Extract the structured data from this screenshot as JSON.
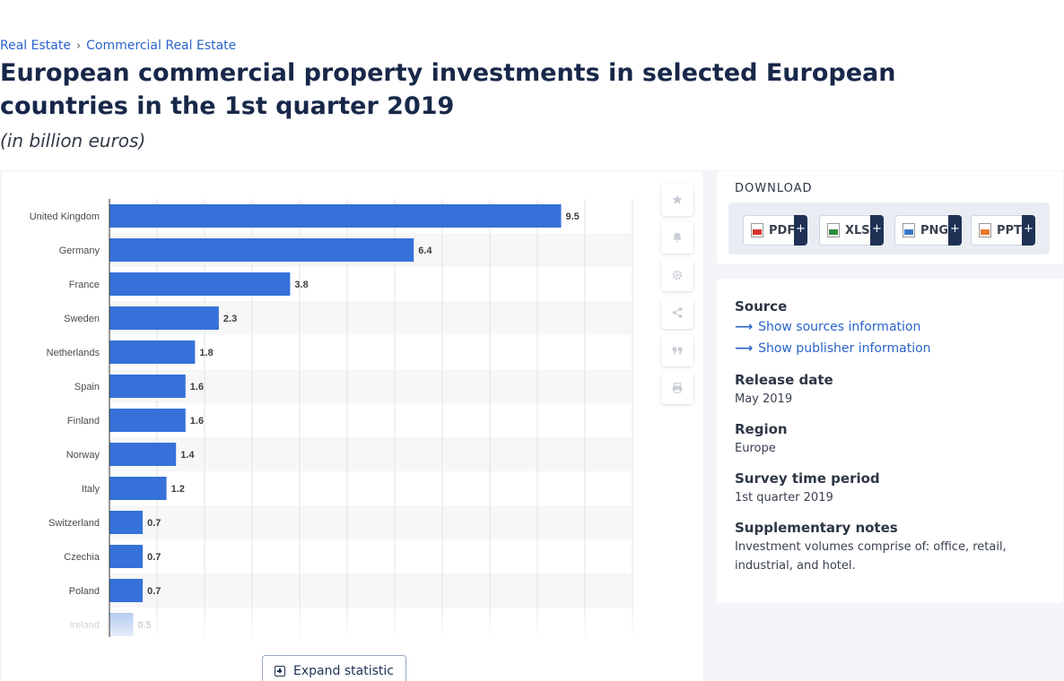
{
  "breadcrumb": {
    "items": [
      "Real Estate",
      "Commercial Real Estate"
    ],
    "separator": "›"
  },
  "title": "European commercial property investments in selected European countries in the 1st quarter 2019",
  "subtitle": "(in billion euros)",
  "chart_data": {
    "type": "bar",
    "orientation": "horizontal",
    "categories": [
      "United Kingdom",
      "Germany",
      "France",
      "Sweden",
      "Netherlands",
      "Spain",
      "Finland",
      "Norway",
      "Italy",
      "Switzerland",
      "Czechia",
      "Poland",
      "Ireland"
    ],
    "values": [
      9.5,
      6.4,
      3.8,
      2.3,
      1.8,
      1.6,
      1.6,
      1.4,
      1.2,
      0.7,
      0.7,
      0.7,
      0.5
    ],
    "value_labels": [
      "9.5",
      "6.4",
      "3.8",
      "2.3",
      "1.8",
      "1.6",
      "1.6",
      "1.4",
      "1.2",
      "0.7",
      "0.7",
      "0.7",
      "0.5"
    ],
    "xlim": [
      0,
      11
    ],
    "grid": true,
    "bar_color": "#3571d8"
  },
  "toolbar": {
    "icons": [
      "star-icon",
      "bell-icon",
      "gear-icon",
      "share-icon",
      "quote-icon",
      "print-icon"
    ]
  },
  "expand_label": "Expand statistic",
  "download": {
    "label": "DOWNLOAD",
    "formats": [
      {
        "label": "PDF",
        "color": "#d9342b"
      },
      {
        "label": "XLS",
        "color": "#2e8b3a"
      },
      {
        "label": "PNG",
        "color": "#3a78c8"
      },
      {
        "label": "PPT",
        "color": "#e8782a"
      }
    ],
    "plus": "+"
  },
  "info": {
    "source_heading": "Source",
    "show_sources": "Show sources information",
    "show_publisher": "Show publisher information",
    "release_heading": "Release date",
    "release_value": "May 2019",
    "region_heading": "Region",
    "region_value": "Europe",
    "period_heading": "Survey time period",
    "period_value": "1st quarter 2019",
    "notes_heading": "Supplementary notes",
    "notes_value": "Investment volumes comprise of: office, retail, industrial, and hotel."
  }
}
